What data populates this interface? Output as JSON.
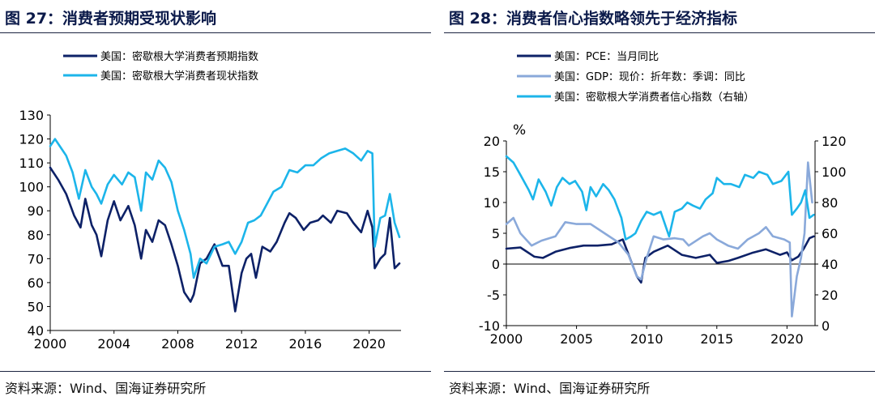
{
  "figures": [
    {
      "title": "图 27：消费者预期受现状影响",
      "source": "资料来源：Wind、国海证券研究所"
    },
    {
      "title": "图 28：消费者信心指数略领先于经济指标",
      "source": "资料来源：Wind、国海证券研究所"
    }
  ],
  "colors": {
    "navy": "#0d2167",
    "cyan": "#1cb5ea",
    "lightblue": "#8aa9da"
  },
  "chart_data": [
    {
      "type": "line",
      "title": "",
      "xlabel": "",
      "ylabel": "",
      "xlim": [
        2000,
        2022
      ],
      "ylim": [
        40,
        130
      ],
      "x_ticks": [
        2000,
        2004,
        2008,
        2012,
        2016,
        2020
      ],
      "y_ticks": [
        40,
        50,
        60,
        70,
        80,
        90,
        100,
        110,
        120,
        130
      ],
      "x_tick_labels": [
        "2000",
        "2004",
        "2008",
        "2012",
        "2016",
        "2020"
      ],
      "y_tick_labels": [
        "40",
        "50",
        "60",
        "70",
        "80",
        "90",
        "100",
        "110",
        "120",
        "130"
      ],
      "grid": false,
      "legend_position": "top-left",
      "series": [
        {
          "name": "美国：密歇根大学消费者预期指数",
          "color": "#0d2167",
          "points": [
            [
              2000.0,
              108
            ],
            [
              2000.5,
              103
            ],
            [
              2001.0,
              97
            ],
            [
              2001.5,
              88
            ],
            [
              2001.9,
              83
            ],
            [
              2002.2,
              95
            ],
            [
              2002.6,
              84
            ],
            [
              2002.9,
              80
            ],
            [
              2003.2,
              71
            ],
            [
              2003.6,
              86
            ],
            [
              2004.0,
              94
            ],
            [
              2004.4,
              86
            ],
            [
              2004.9,
              92
            ],
            [
              2005.3,
              84
            ],
            [
              2005.7,
              70
            ],
            [
              2006.0,
              82
            ],
            [
              2006.4,
              77
            ],
            [
              2006.8,
              86
            ],
            [
              2007.2,
              84
            ],
            [
              2007.6,
              76
            ],
            [
              2008.0,
              67
            ],
            [
              2008.4,
              56
            ],
            [
              2008.8,
              52
            ],
            [
              2009.0,
              55
            ],
            [
              2009.4,
              68
            ],
            [
              2009.8,
              70
            ],
            [
              2010.3,
              76
            ],
            [
              2010.8,
              67
            ],
            [
              2011.2,
              67
            ],
            [
              2011.6,
              48
            ],
            [
              2012.0,
              64
            ],
            [
              2012.3,
              70
            ],
            [
              2012.6,
              72
            ],
            [
              2012.9,
              62
            ],
            [
              2013.3,
              75
            ],
            [
              2013.8,
              73
            ],
            [
              2014.2,
              77
            ],
            [
              2014.7,
              85
            ],
            [
              2015.0,
              89
            ],
            [
              2015.4,
              87
            ],
            [
              2015.9,
              82
            ],
            [
              2016.3,
              85
            ],
            [
              2016.8,
              86
            ],
            [
              2017.1,
              88
            ],
            [
              2017.6,
              85
            ],
            [
              2018.0,
              90
            ],
            [
              2018.6,
              89
            ],
            [
              2019.0,
              85
            ],
            [
              2019.5,
              81
            ],
            [
              2019.9,
              90
            ],
            [
              2020.2,
              83
            ],
            [
              2020.35,
              66
            ],
            [
              2020.7,
              70
            ],
            [
              2021.0,
              72
            ],
            [
              2021.3,
              87
            ],
            [
              2021.6,
              66
            ],
            [
              2021.9,
              68
            ]
          ]
        },
        {
          "name": "美国：密歇根大学消费者现状指数",
          "color": "#1cb5ea",
          "points": [
            [
              2000.0,
              117
            ],
            [
              2000.3,
              120
            ],
            [
              2000.7,
              116
            ],
            [
              2001.0,
              113
            ],
            [
              2001.4,
              106
            ],
            [
              2001.8,
              95
            ],
            [
              2002.2,
              107
            ],
            [
              2002.6,
              100
            ],
            [
              2002.9,
              97
            ],
            [
              2003.2,
              93
            ],
            [
              2003.6,
              101
            ],
            [
              2004.0,
              105
            ],
            [
              2004.5,
              101
            ],
            [
              2004.9,
              106
            ],
            [
              2005.3,
              104
            ],
            [
              2005.7,
              90
            ],
            [
              2006.0,
              106
            ],
            [
              2006.4,
              103
            ],
            [
              2006.8,
              111
            ],
            [
              2007.2,
              108
            ],
            [
              2007.6,
              102
            ],
            [
              2008.0,
              90
            ],
            [
              2008.4,
              82
            ],
            [
              2008.8,
              72
            ],
            [
              2009.0,
              62
            ],
            [
              2009.4,
              70
            ],
            [
              2009.8,
              68
            ],
            [
              2010.3,
              75
            ],
            [
              2010.8,
              76
            ],
            [
              2011.2,
              77
            ],
            [
              2011.6,
              72
            ],
            [
              2012.0,
              77
            ],
            [
              2012.4,
              85
            ],
            [
              2012.8,
              86
            ],
            [
              2013.2,
              88
            ],
            [
              2013.6,
              93
            ],
            [
              2014.0,
              98
            ],
            [
              2014.5,
              100
            ],
            [
              2015.0,
              107
            ],
            [
              2015.5,
              106
            ],
            [
              2016.0,
              109
            ],
            [
              2016.5,
              109
            ],
            [
              2017.0,
              112
            ],
            [
              2017.5,
              114
            ],
            [
              2018.0,
              115
            ],
            [
              2018.5,
              116
            ],
            [
              2019.0,
              114
            ],
            [
              2019.5,
              111
            ],
            [
              2019.9,
              115
            ],
            [
              2020.2,
              114
            ],
            [
              2020.35,
              75
            ],
            [
              2020.7,
              87
            ],
            [
              2021.0,
              88
            ],
            [
              2021.3,
              97
            ],
            [
              2021.6,
              85
            ],
            [
              2021.9,
              79
            ]
          ]
        }
      ]
    },
    {
      "type": "line",
      "title": "",
      "xlabel": "",
      "ylabel": "%",
      "xlim": [
        2000,
        2022
      ],
      "ylim": [
        -10,
        20
      ],
      "y2lim": [
        0,
        120
      ],
      "x_ticks": [
        2000,
        2005,
        2010,
        2015,
        2020
      ],
      "y_ticks": [
        -10,
        -5,
        0,
        5,
        10,
        15,
        20
      ],
      "y2_ticks": [
        0,
        20,
        40,
        60,
        80,
        100,
        120
      ],
      "x_tick_labels": [
        "2000",
        "2005",
        "2010",
        "2015",
        "2020"
      ],
      "y_tick_labels": [
        "-10",
        "-5",
        "0",
        "5",
        "10",
        "15",
        "20"
      ],
      "y2_tick_labels": [
        "0",
        "20",
        "40",
        "60",
        "80",
        "100",
        "120"
      ],
      "grid": false,
      "legend_position": "top-left",
      "series": [
        {
          "name": "美国：PCE：当月同比",
          "axis": "left",
          "color": "#0d2167",
          "points": [
            [
              2000.0,
              2.5
            ],
            [
              2001.0,
              2.7
            ],
            [
              2002.0,
              1.2
            ],
            [
              2002.6,
              1.0
            ],
            [
              2003.5,
              2.0
            ],
            [
              2004.5,
              2.6
            ],
            [
              2005.5,
              3.0
            ],
            [
              2006.5,
              3.0
            ],
            [
              2007.5,
              3.2
            ],
            [
              2008.3,
              4.0
            ],
            [
              2008.8,
              1.0
            ],
            [
              2009.3,
              -2.0
            ],
            [
              2009.6,
              -3.0
            ],
            [
              2009.9,
              1.0
            ],
            [
              2010.5,
              2.0
            ],
            [
              2011.5,
              3.0
            ],
            [
              2012.5,
              1.5
            ],
            [
              2013.5,
              1.0
            ],
            [
              2014.5,
              1.5
            ],
            [
              2015.0,
              0.2
            ],
            [
              2015.8,
              0.5
            ],
            [
              2016.5,
              1.0
            ],
            [
              2017.5,
              1.8
            ],
            [
              2018.5,
              2.4
            ],
            [
              2019.5,
              1.5
            ],
            [
              2020.0,
              1.9
            ],
            [
              2020.35,
              0.6
            ],
            [
              2020.8,
              1.2
            ],
            [
              2021.2,
              2.5
            ],
            [
              2021.6,
              4.2
            ],
            [
              2021.9,
              4.5
            ]
          ]
        },
        {
          "name": "美国：GDP：现价：折年数：季调：同比",
          "axis": "left",
          "color": "#8aa9da",
          "points": [
            [
              2000.0,
              6.5
            ],
            [
              2000.5,
              7.5
            ],
            [
              2001.0,
              5.0
            ],
            [
              2001.8,
              3.0
            ],
            [
              2002.5,
              3.8
            ],
            [
              2003.5,
              4.5
            ],
            [
              2004.2,
              6.8
            ],
            [
              2005.0,
              6.5
            ],
            [
              2006.0,
              6.5
            ],
            [
              2007.0,
              5.0
            ],
            [
              2008.0,
              3.5
            ],
            [
              2008.7,
              1.5
            ],
            [
              2009.3,
              -2.0
            ],
            [
              2009.6,
              -2.5
            ],
            [
              2010.0,
              1.0
            ],
            [
              2010.5,
              4.5
            ],
            [
              2011.2,
              4.0
            ],
            [
              2012.0,
              4.2
            ],
            [
              2012.6,
              4.0
            ],
            [
              2013.0,
              3.0
            ],
            [
              2014.0,
              4.5
            ],
            [
              2014.5,
              5.0
            ],
            [
              2015.0,
              4.0
            ],
            [
              2015.8,
              3.0
            ],
            [
              2016.5,
              2.5
            ],
            [
              2017.2,
              4.0
            ],
            [
              2018.0,
              5.0
            ],
            [
              2018.5,
              6.0
            ],
            [
              2019.0,
              4.5
            ],
            [
              2019.8,
              4.0
            ],
            [
              2020.2,
              3.5
            ],
            [
              2020.35,
              -8.5
            ],
            [
              2020.7,
              -2.0
            ],
            [
              2021.0,
              1.0
            ],
            [
              2021.25,
              5.0
            ],
            [
              2021.5,
              16.5
            ],
            [
              2021.8,
              10.0
            ]
          ]
        },
        {
          "name": "美国：密歇根大学消费者信心指数（右轴）",
          "axis": "right",
          "color": "#1cb5ea",
          "points": [
            [
              2000.0,
              110
            ],
            [
              2000.5,
              106
            ],
            [
              2001.0,
              98
            ],
            [
              2001.6,
              88
            ],
            [
              2001.9,
              82
            ],
            [
              2002.3,
              95
            ],
            [
              2002.8,
              87
            ],
            [
              2003.2,
              78
            ],
            [
              2003.6,
              90
            ],
            [
              2004.0,
              96
            ],
            [
              2004.5,
              92
            ],
            [
              2004.9,
              94
            ],
            [
              2005.4,
              87
            ],
            [
              2005.7,
              75
            ],
            [
              2006.0,
              90
            ],
            [
              2006.4,
              84
            ],
            [
              2006.9,
              92
            ],
            [
              2007.3,
              88
            ],
            [
              2007.7,
              82
            ],
            [
              2008.2,
              70
            ],
            [
              2008.5,
              56
            ],
            [
              2008.9,
              58
            ],
            [
              2009.2,
              60
            ],
            [
              2009.6,
              68
            ],
            [
              2010.0,
              74
            ],
            [
              2010.5,
              72
            ],
            [
              2011.0,
              74
            ],
            [
              2011.6,
              58
            ],
            [
              2012.0,
              74
            ],
            [
              2012.5,
              76
            ],
            [
              2012.9,
              80
            ],
            [
              2013.3,
              78
            ],
            [
              2013.8,
              76
            ],
            [
              2014.2,
              82
            ],
            [
              2014.7,
              86
            ],
            [
              2015.0,
              96
            ],
            [
              2015.5,
              92
            ],
            [
              2016.0,
              92
            ],
            [
              2016.6,
              90
            ],
            [
              2017.0,
              98
            ],
            [
              2017.6,
              96
            ],
            [
              2018.0,
              100
            ],
            [
              2018.6,
              98
            ],
            [
              2019.0,
              92
            ],
            [
              2019.6,
              94
            ],
            [
              2020.1,
              100
            ],
            [
              2020.35,
              72
            ],
            [
              2020.7,
              76
            ],
            [
              2021.0,
              80
            ],
            [
              2021.3,
              88
            ],
            [
              2021.6,
              70
            ],
            [
              2021.9,
              72
            ]
          ]
        }
      ]
    }
  ]
}
